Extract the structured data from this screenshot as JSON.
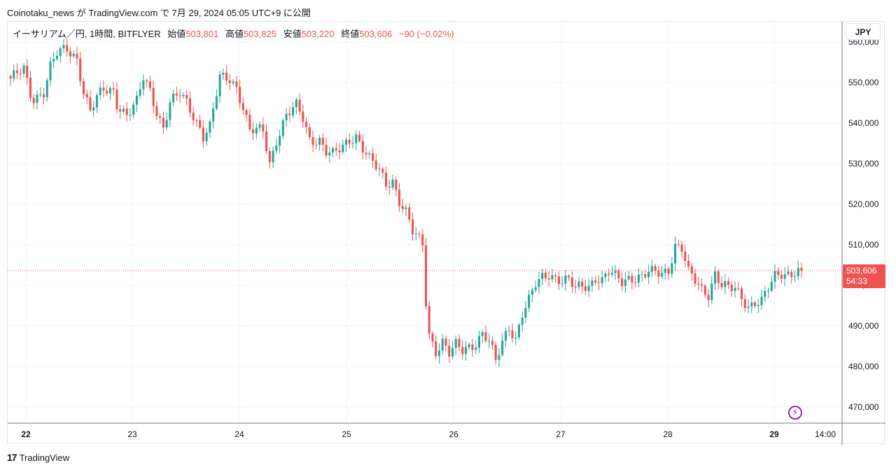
{
  "caption": "Coinotaku_news が TradingView.com で 7月 29, 2024 05:05 UTC+9 に公開",
  "legend": {
    "symbol": "イーサリアム／円, 1時間, BITFLYER",
    "open_label": "始値",
    "open": "503,801",
    "high_label": "高値",
    "high": "503,825",
    "low_label": "安値",
    "low": "503,220",
    "close_label": "終値",
    "close": "503,606",
    "change": "−90 (−0.02%)"
  },
  "currency": "JPY",
  "last_price_label": {
    "price": "503,606",
    "countdown": "54:33"
  },
  "brand": {
    "logo": "17",
    "name": "TradingView"
  },
  "icons": {
    "flash": "flash-icon",
    "brand": "tradingview-logo-icon"
  },
  "colors": {
    "up": "#26a69a",
    "down": "#ef5350",
    "grid": "#f0f3fa",
    "last_line": "#ef5350"
  },
  "chart_data": {
    "type": "candlestick",
    "interval": "1h",
    "ylim": [
      466000,
      565000
    ],
    "y_ticks": [
      470000,
      480000,
      490000,
      500000,
      510000,
      520000,
      530000,
      540000,
      550000,
      560000
    ],
    "y_tick_labels": [
      "470,000",
      "480,000",
      "490,000",
      "500,000",
      "510,000",
      "520,000",
      "530,000",
      "540,000",
      "550,000",
      "560,000"
    ],
    "x_ticks": [
      "22",
      "23",
      "24",
      "25",
      "26",
      "27",
      "28",
      "29",
      "14:00"
    ],
    "last_price": 503606,
    "anchors": [
      [
        0,
        551000
      ],
      [
        2,
        552000
      ],
      [
        4,
        553000
      ],
      [
        6,
        547000
      ],
      [
        7,
        546000
      ],
      [
        10,
        548000
      ],
      [
        12,
        554000
      ],
      [
        14,
        557000
      ],
      [
        17,
        558000
      ],
      [
        20,
        556000
      ],
      [
        22,
        548000
      ],
      [
        24,
        543000
      ],
      [
        26,
        546000
      ],
      [
        28,
        548000
      ],
      [
        31,
        548000
      ],
      [
        32,
        545000
      ],
      [
        35,
        542000
      ],
      [
        38,
        545000
      ],
      [
        40,
        551000
      ],
      [
        42,
        548000
      ],
      [
        44,
        543000
      ],
      [
        46,
        539000
      ],
      [
        48,
        545000
      ],
      [
        51,
        547000
      ],
      [
        53,
        545000
      ],
      [
        55,
        542000
      ],
      [
        57,
        539000
      ],
      [
        58,
        537000
      ],
      [
        60,
        539000
      ],
      [
        63,
        551000
      ],
      [
        66,
        551000
      ],
      [
        68,
        549000
      ],
      [
        70,
        544000
      ],
      [
        72,
        538000
      ],
      [
        74,
        538000
      ],
      [
        76,
        538000
      ],
      [
        78,
        530000
      ],
      [
        80,
        536000
      ],
      [
        83,
        542000
      ],
      [
        86,
        544000
      ],
      [
        88,
        541000
      ],
      [
        90,
        536000
      ],
      [
        93,
        536000
      ],
      [
        95,
        533000
      ],
      [
        97,
        532000
      ],
      [
        100,
        534000
      ],
      [
        102,
        536000
      ],
      [
        104,
        537000
      ],
      [
        106,
        534000
      ],
      [
        108,
        531000
      ],
      [
        111,
        528000
      ],
      [
        113,
        525000
      ],
      [
        115,
        526000
      ],
      [
        117,
        521000
      ],
      [
        119,
        518000
      ],
      [
        121,
        513000
      ],
      [
        123,
        511000
      ],
      [
        124,
        510000
      ],
      [
        125,
        496000
      ],
      [
        126,
        488000
      ],
      [
        128,
        484000
      ],
      [
        130,
        486000
      ],
      [
        132,
        483000
      ],
      [
        134,
        485000
      ],
      [
        136,
        484000
      ],
      [
        138,
        485000
      ],
      [
        140,
        486000
      ],
      [
        142,
        488000
      ],
      [
        144,
        486000
      ],
      [
        146,
        481000
      ],
      [
        148,
        486000
      ],
      [
        150,
        490000
      ],
      [
        152,
        487000
      ],
      [
        154,
        493000
      ],
      [
        156,
        496000
      ],
      [
        158,
        500000
      ],
      [
        160,
        502000
      ],
      [
        162,
        503000
      ],
      [
        164,
        502000
      ],
      [
        166,
        501000
      ],
      [
        168,
        501000
      ],
      [
        170,
        499000
      ],
      [
        172,
        500000
      ],
      [
        174,
        500000
      ],
      [
        176,
        502000
      ],
      [
        178,
        501000
      ],
      [
        180,
        503000
      ],
      [
        182,
        502000
      ],
      [
        184,
        501000
      ],
      [
        186,
        502000
      ],
      [
        188,
        502000
      ],
      [
        190,
        502000
      ],
      [
        192,
        503000
      ],
      [
        194,
        503000
      ],
      [
        196,
        503000
      ],
      [
        198,
        504000
      ],
      [
        200,
        510000
      ],
      [
        202,
        509000
      ],
      [
        204,
        503000
      ],
      [
        206,
        501000
      ],
      [
        208,
        499000
      ],
      [
        210,
        498000
      ],
      [
        212,
        503000
      ],
      [
        214,
        500000
      ],
      [
        216,
        499000
      ],
      [
        218,
        499000
      ],
      [
        220,
        497000
      ],
      [
        222,
        495000
      ],
      [
        224,
        496000
      ],
      [
        226,
        496000
      ],
      [
        228,
        499000
      ],
      [
        230,
        502000
      ],
      [
        232,
        503000
      ],
      [
        234,
        503000
      ],
      [
        236,
        503500
      ],
      [
        238,
        503606
      ]
    ]
  }
}
